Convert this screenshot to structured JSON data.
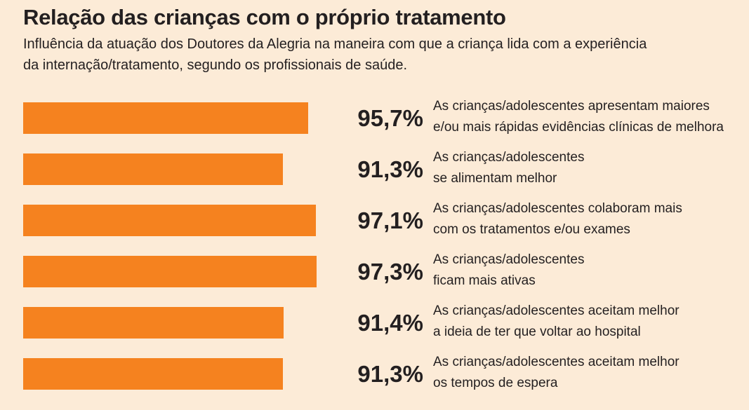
{
  "title": "Relação das crianças com o próprio tratamento",
  "subtitle": "Influência da atuação dos Doutores da Alegria na maneira com que a criança lida com a experiência da internação/tratamento, segundo os profissionais de saúde.",
  "colors": {
    "background": "#fcebd7",
    "bar": "#f5821f",
    "text": "#231f20"
  },
  "chart_data": {
    "type": "bar",
    "orientation": "horizontal",
    "title": "Relação das crianças com o próprio tratamento",
    "subtitle": "Influência da atuação dos Doutores da Alegria na maneira com que a criança lida com a experiência da internação/tratamento, segundo os profissionais de saúde.",
    "unit": "%",
    "categories": [
      [
        "As crianças/adolescentes apresentam maiores",
        "e/ou mais rápidas evidências clínicas de melhora"
      ],
      [
        "As crianças/adolescentes",
        "se alimentam melhor"
      ],
      [
        "As crianças/adolescentes colaboram mais",
        "com os tratamentos e/ou exames"
      ],
      [
        "As crianças/adolescentes",
        "ficam mais ativas"
      ],
      [
        "As crianças/adolescentes aceitam melhor",
        "a ideia de ter que voltar ao hospital"
      ],
      [
        "As crianças/adolescentes aceitam melhor",
        "os tempos de espera"
      ]
    ],
    "values": [
      95.7,
      91.3,
      97.1,
      97.3,
      91.4,
      91.3
    ],
    "value_labels": [
      "95,7%",
      "91,3%",
      "97,1%",
      "97,3%",
      "91,4%",
      "91,3%"
    ],
    "xlim": [
      0,
      100
    ],
    "grid": false,
    "legend": "none"
  }
}
